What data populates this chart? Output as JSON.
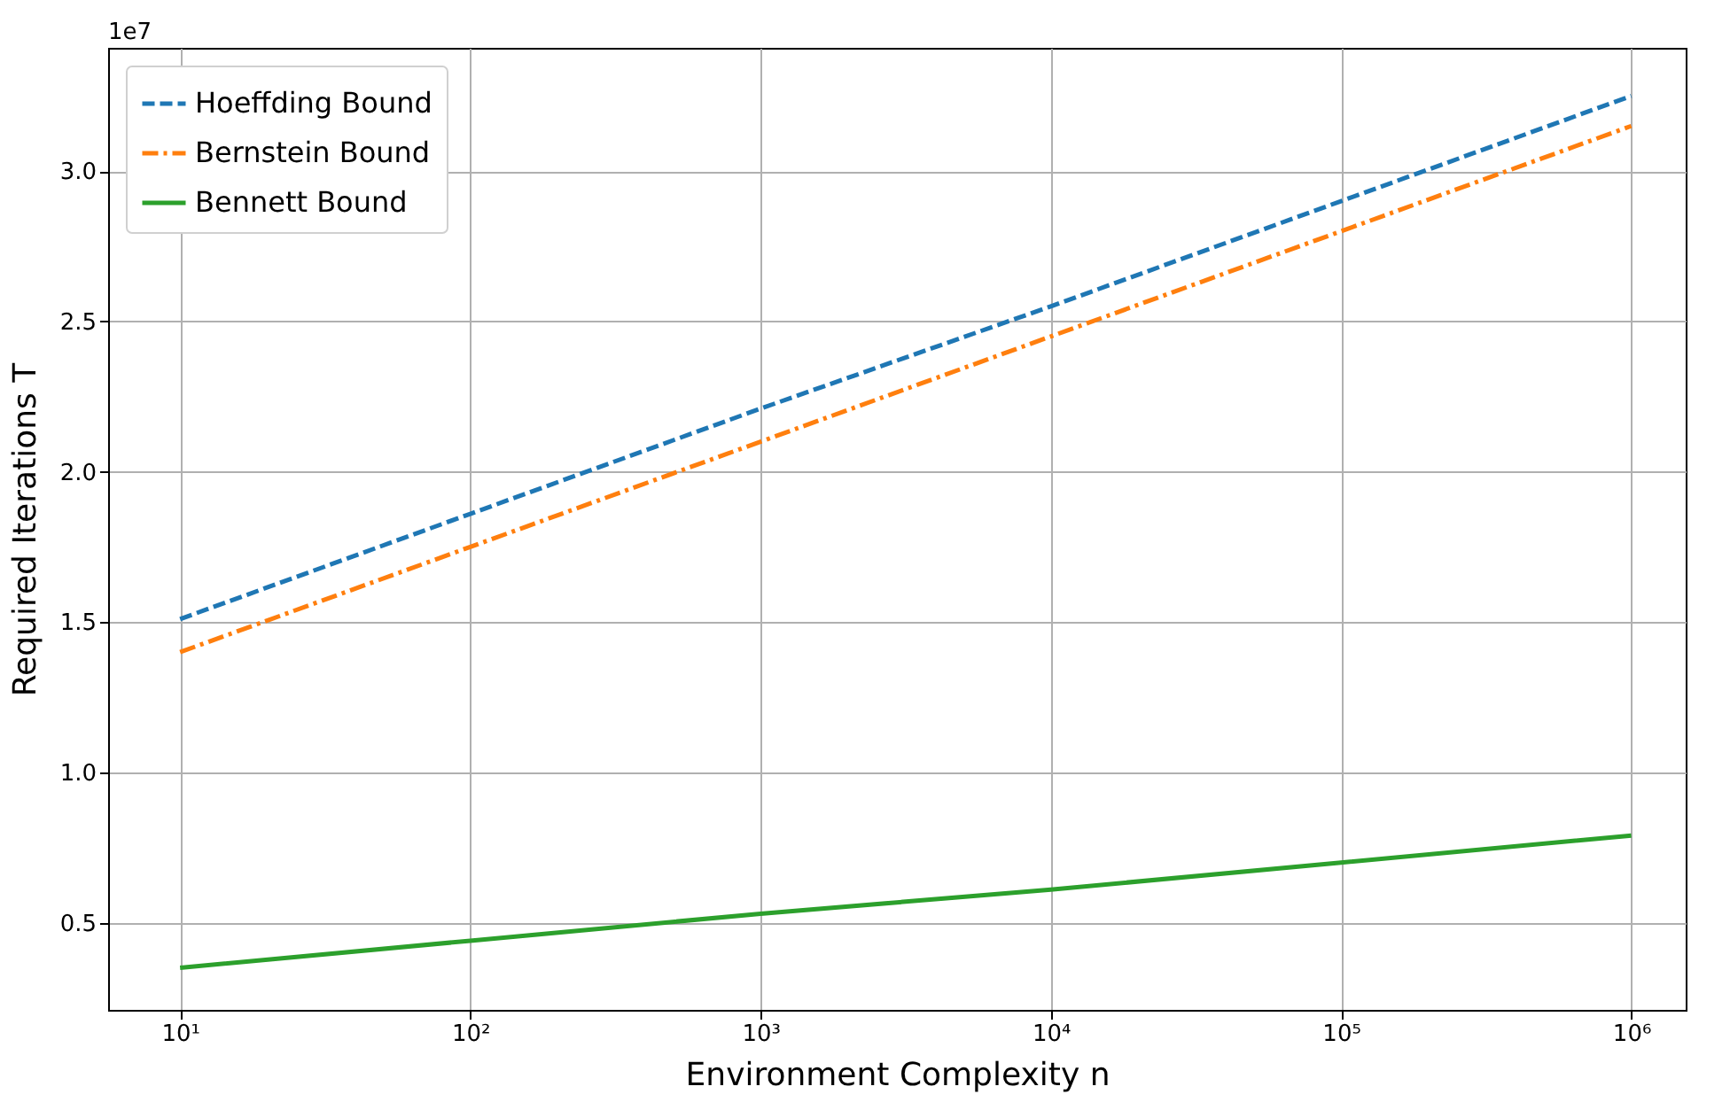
{
  "chart_data": {
    "type": "line",
    "xlabel": "Environment Complexity n",
    "ylabel": "Required Iterations T",
    "annotations": [
      "1e7"
    ],
    "log": "x",
    "grid": true,
    "legend": "top left",
    "x": [
      10,
      100,
      1000,
      10000,
      100000,
      1000000
    ],
    "xlim": [
      5.65,
      1540000
    ],
    "xticks": [
      {
        "value": 10,
        "label": "10¹"
      },
      {
        "value": 100,
        "label": "10²"
      },
      {
        "value": 1000,
        "label": "10³"
      },
      {
        "value": 10000,
        "label": "10⁴"
      },
      {
        "value": 100000,
        "label": "10⁵"
      },
      {
        "value": 1000000,
        "label": "10⁶"
      }
    ],
    "ylim": [
      0.21,
      3.41
    ],
    "yticks": [
      {
        "value": 0.5,
        "label": "0.5"
      },
      {
        "value": 1.0,
        "label": "1.0"
      },
      {
        "value": 1.5,
        "label": "1.5"
      },
      {
        "value": 2.0,
        "label": "2.0"
      },
      {
        "value": 2.5,
        "label": "2.5"
      },
      {
        "value": 3.0,
        "label": "3.0"
      }
    ],
    "series": [
      {
        "name": "Hoeffding Bound",
        "color": "#1f77b4",
        "line_style": "dashed",
        "values": [
          1.51,
          1.86,
          2.21,
          2.55,
          2.9,
          3.25
        ]
      },
      {
        "name": "Bernstein Bound",
        "color": "#ff7f0e",
        "line_style": "dashdot",
        "values": [
          1.4,
          1.75,
          2.1,
          2.45,
          2.8,
          3.15
        ]
      },
      {
        "name": "Bennett Bound",
        "color": "#2ca02c",
        "line_style": "solid",
        "values": [
          0.35,
          0.44,
          0.53,
          0.61,
          0.7,
          0.79
        ]
      }
    ]
  }
}
